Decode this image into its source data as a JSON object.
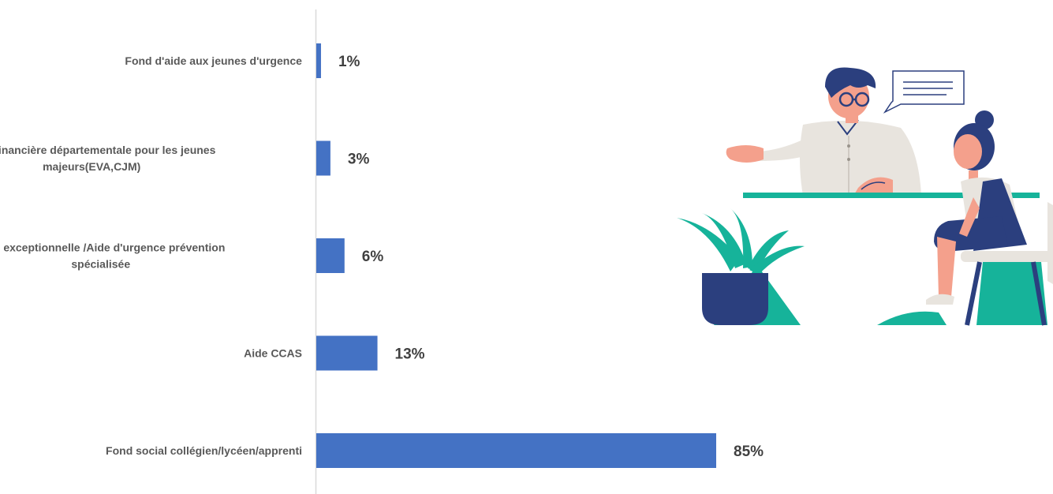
{
  "chart_data": {
    "type": "bar",
    "orientation": "horizontal",
    "categories": [
      [
        "Fond d'aide aux jeunes d'urgence"
      ],
      [
        "Aide financière départementale pour les jeunes",
        "majeurs(EVA,CJM)"
      ],
      [
        "Aide exceptionnelle /Aide d'urgence prévention",
        "spécialisée"
      ],
      [
        "Aide CCAS"
      ],
      [
        "Fond social collégien/lycéen/apprenti"
      ]
    ],
    "values": [
      1,
      3,
      6,
      13,
      85
    ],
    "value_labels": [
      "1%",
      "3%",
      "6%",
      "13%",
      "85%"
    ],
    "title": "",
    "xlabel": "",
    "ylabel": "",
    "xlim": [
      0,
      100
    ],
    "grid": false,
    "legend": "none",
    "bar_color": "#4472C4",
    "axis_color": "#D9D9D9"
  },
  "illustration": {
    "icon": "consultation-illustration-icon",
    "colors": {
      "navy": "#2B3F7E",
      "teal": "#16B39A",
      "skin": "#F4A08C",
      "shirt": "#E8E4DE"
    }
  }
}
